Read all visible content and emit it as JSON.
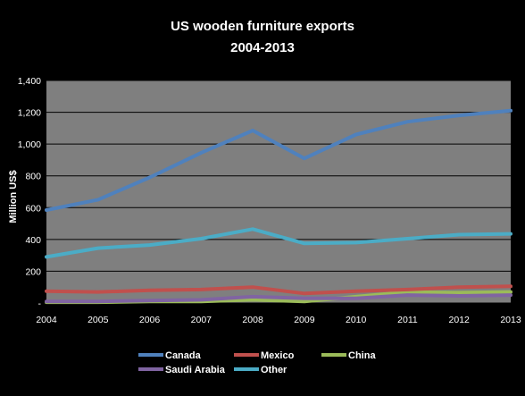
{
  "chart_data": {
    "type": "line",
    "title": "US wooden furniture exports",
    "subtitle": "2004-2013",
    "xlabel": "",
    "ylabel": "Million US$",
    "x": [
      "2004",
      "2005",
      "2006",
      "2007",
      "2008",
      "2009",
      "2010",
      "2011",
      "2012",
      "2013"
    ],
    "ylim": [
      0,
      1400
    ],
    "yticks": [
      0,
      200,
      400,
      600,
      800,
      1000,
      1200,
      1400
    ],
    "ytick_labels": [
      "-",
      "200",
      "400",
      "600",
      "800",
      "1,000",
      "1,200",
      "1,400"
    ],
    "grid": true,
    "legend_position": "bottom",
    "series": [
      {
        "name": "Canada",
        "color": "#4f81bd",
        "values": [
          585,
          650,
          790,
          945,
          1085,
          910,
          1060,
          1140,
          1180,
          1210
        ]
      },
      {
        "name": "Mexico",
        "color": "#c0504d",
        "values": [
          75,
          70,
          80,
          85,
          100,
          60,
          75,
          85,
          100,
          105
        ]
      },
      {
        "name": "China",
        "color": "#9bbb59",
        "values": [
          5,
          5,
          10,
          10,
          20,
          10,
          40,
          70,
          65,
          70
        ]
      },
      {
        "name": "Saudi Arabia",
        "color": "#8064a2",
        "values": [
          10,
          10,
          15,
          20,
          40,
          30,
          30,
          50,
          45,
          50
        ]
      },
      {
        "name": "Other",
        "color": "#4bacc6",
        "values": [
          290,
          345,
          365,
          405,
          465,
          375,
          380,
          405,
          430,
          435
        ]
      }
    ]
  }
}
